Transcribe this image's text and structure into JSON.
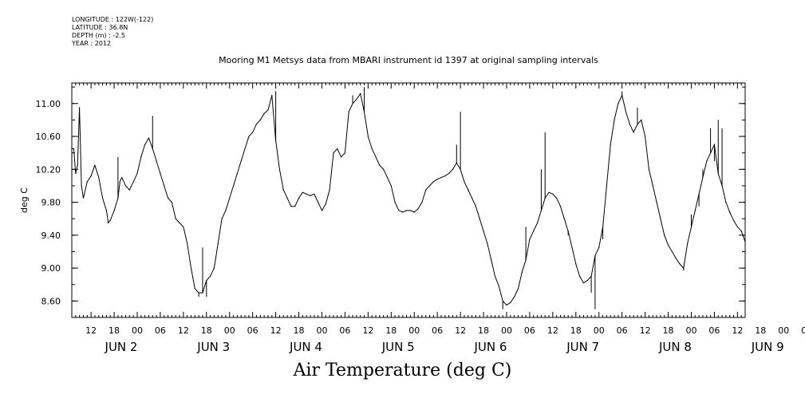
{
  "header": {
    "longitude": "LONGITUDE : 122W(-122)",
    "latitude": "LATITUDE : 36.8N",
    "depth": "DEPTH (m) : -2.5",
    "year": "YEAR : 2012"
  },
  "chart_data": {
    "type": "line",
    "title": "Mooring M1 Metsys data from MBARI instrument id 1397 at original sampling intervals",
    "ylabel": "deg C",
    "xlabel": "Air Temperature (deg C)",
    "ylim": [
      8.4,
      11.25
    ],
    "y_ticks": [
      "11.00",
      "10.60",
      "10.20",
      "9.80",
      "9.40",
      "9.00",
      "8.60"
    ],
    "x_hour_ticks": [
      "12",
      "18",
      "00",
      "06",
      "12",
      "18",
      "00",
      "06",
      "12",
      "18",
      "00",
      "06",
      "12",
      "18",
      "00",
      "06",
      "12",
      "18",
      "00",
      "06",
      "12",
      "18",
      "00",
      "06",
      "12",
      "18",
      "00",
      "06",
      "12",
      "18",
      "00",
      "06"
    ],
    "x_day_labels": [
      "JUN  2",
      "JUN  3",
      "JUN  4",
      "JUN  5",
      "JUN  6",
      "JUN  7",
      "JUN  8",
      "JUN  9"
    ],
    "series": [
      {
        "values": [
          [
            0,
            10.45
          ],
          [
            0.5,
            10.45
          ],
          [
            1,
            10.15
          ],
          [
            1.5,
            10.25
          ],
          [
            2,
            10.95
          ],
          [
            2.5,
            10.0
          ],
          [
            3,
            9.85
          ],
          [
            4,
            10.05
          ],
          [
            5,
            10.12
          ],
          [
            6,
            10.25
          ],
          [
            7,
            10.1
          ],
          [
            8,
            9.85
          ],
          [
            9,
            9.7
          ],
          [
            9.5,
            9.55
          ],
          [
            10,
            9.58
          ],
          [
            11,
            9.7
          ],
          [
            12,
            9.85
          ],
          [
            12.5,
            10.05
          ],
          [
            13,
            10.1
          ],
          [
            14,
            10.0
          ],
          [
            15,
            9.95
          ],
          [
            16,
            10.05
          ],
          [
            17,
            10.15
          ],
          [
            18,
            10.35
          ],
          [
            19,
            10.5
          ],
          [
            20,
            10.58
          ],
          [
            21,
            10.45
          ],
          [
            22,
            10.3
          ],
          [
            23,
            10.15
          ],
          [
            24,
            10.0
          ],
          [
            25,
            9.85
          ],
          [
            26,
            9.8
          ],
          [
            27,
            9.6
          ],
          [
            28,
            9.55
          ],
          [
            29,
            9.5
          ],
          [
            30,
            9.3
          ],
          [
            31,
            9.0
          ],
          [
            32,
            8.75
          ],
          [
            33,
            8.7
          ],
          [
            34,
            8.7
          ],
          [
            35,
            8.85
          ],
          [
            36,
            8.9
          ],
          [
            37,
            9.0
          ],
          [
            38,
            9.3
          ],
          [
            39,
            9.6
          ],
          [
            40,
            9.7
          ],
          [
            41,
            9.85
          ],
          [
            42,
            10.0
          ],
          [
            43,
            10.15
          ],
          [
            44,
            10.3
          ],
          [
            45,
            10.45
          ],
          [
            46,
            10.6
          ],
          [
            47,
            10.65
          ],
          [
            48,
            10.75
          ],
          [
            49,
            10.8
          ],
          [
            50,
            10.88
          ],
          [
            51,
            10.92
          ],
          [
            52,
            11.1
          ],
          [
            53,
            10.55
          ],
          [
            54,
            10.2
          ],
          [
            55,
            9.95
          ],
          [
            56,
            9.85
          ],
          [
            57,
            9.75
          ],
          [
            58,
            9.75
          ],
          [
            59,
            9.85
          ],
          [
            60,
            9.92
          ],
          [
            61,
            9.9
          ],
          [
            62,
            9.88
          ],
          [
            63,
            9.9
          ],
          [
            64,
            9.8
          ],
          [
            65,
            9.7
          ],
          [
            66,
            9.78
          ],
          [
            67,
            9.95
          ],
          [
            68,
            10.4
          ],
          [
            69,
            10.45
          ],
          [
            70,
            10.35
          ],
          [
            71,
            10.4
          ],
          [
            72,
            10.9
          ],
          [
            73,
            11.0
          ],
          [
            74,
            11.05
          ],
          [
            75,
            11.12
          ],
          [
            76,
            10.9
          ],
          [
            77,
            10.6
          ],
          [
            78,
            10.45
          ],
          [
            79,
            10.35
          ],
          [
            80,
            10.25
          ],
          [
            81,
            10.2
          ],
          [
            82,
            10.1
          ],
          [
            83,
            10.0
          ],
          [
            84,
            9.8
          ],
          [
            85,
            9.7
          ],
          [
            86,
            9.68
          ],
          [
            87,
            9.7
          ],
          [
            88,
            9.7
          ],
          [
            89,
            9.68
          ],
          [
            90,
            9.72
          ],
          [
            91,
            9.8
          ],
          [
            92,
            9.95
          ],
          [
            93,
            10.0
          ],
          [
            94,
            10.05
          ],
          [
            95,
            10.08
          ],
          [
            96,
            10.1
          ],
          [
            97,
            10.12
          ],
          [
            98,
            10.15
          ],
          [
            99,
            10.2
          ],
          [
            100,
            10.28
          ],
          [
            101,
            10.2
          ],
          [
            102,
            10.05
          ],
          [
            103,
            9.95
          ],
          [
            104,
            9.85
          ],
          [
            105,
            9.75
          ],
          [
            106,
            9.6
          ],
          [
            107,
            9.45
          ],
          [
            108,
            9.3
          ],
          [
            109,
            9.1
          ],
          [
            110,
            8.9
          ],
          [
            111,
            8.78
          ],
          [
            112,
            8.6
          ],
          [
            113,
            8.55
          ],
          [
            114,
            8.58
          ],
          [
            115,
            8.65
          ],
          [
            116,
            8.75
          ],
          [
            117,
            8.95
          ],
          [
            118,
            9.1
          ],
          [
            119,
            9.35
          ],
          [
            120,
            9.45
          ],
          [
            121,
            9.55
          ],
          [
            122,
            9.7
          ],
          [
            123,
            9.85
          ],
          [
            124,
            9.92
          ],
          [
            125,
            9.9
          ],
          [
            126,
            9.85
          ],
          [
            127,
            9.75
          ],
          [
            128,
            9.6
          ],
          [
            129,
            9.45
          ],
          [
            130,
            9.25
          ],
          [
            131,
            9.05
          ],
          [
            132,
            8.9
          ],
          [
            133,
            8.82
          ],
          [
            134,
            8.85
          ],
          [
            135,
            8.9
          ],
          [
            136,
            9.15
          ],
          [
            137,
            9.25
          ],
          [
            138,
            9.5
          ],
          [
            139,
            10.0
          ],
          [
            140,
            10.5
          ],
          [
            141,
            10.8
          ],
          [
            142,
            11.0
          ],
          [
            143,
            11.1
          ],
          [
            144,
            10.9
          ],
          [
            145,
            10.75
          ],
          [
            146,
            10.65
          ],
          [
            147,
            10.75
          ],
          [
            148,
            10.8
          ],
          [
            149,
            10.6
          ],
          [
            150,
            10.2
          ],
          [
            151,
            10.0
          ],
          [
            152,
            9.8
          ],
          [
            153,
            9.6
          ],
          [
            154,
            9.4
          ],
          [
            155,
            9.28
          ],
          [
            156,
            9.2
          ],
          [
            157,
            9.12
          ],
          [
            158,
            9.05
          ],
          [
            159,
            9.0
          ],
          [
            160,
            9.3
          ],
          [
            161,
            9.5
          ],
          [
            162,
            9.7
          ],
          [
            163,
            9.9
          ],
          [
            164,
            10.1
          ],
          [
            165,
            10.3
          ],
          [
            166,
            10.4
          ],
          [
            167,
            10.5
          ],
          [
            168,
            10.15
          ],
          [
            169,
            10.0
          ],
          [
            170,
            9.8
          ],
          [
            171,
            9.68
          ],
          [
            172,
            9.58
          ],
          [
            173,
            9.5
          ],
          [
            174,
            9.45
          ],
          [
            175,
            9.32
          ]
        ]
      }
    ],
    "spikes": [
      [
        2,
        10.95
      ],
      [
        12,
        10.35
      ],
      [
        21,
        10.85
      ],
      [
        33,
        8.65
      ],
      [
        34,
        9.25
      ],
      [
        35,
        8.65
      ],
      [
        53,
        11.15
      ],
      [
        73,
        11.1
      ],
      [
        76,
        11.2
      ],
      [
        100,
        10.5
      ],
      [
        101,
        10.9
      ],
      [
        112,
        8.5
      ],
      [
        118,
        9.5
      ],
      [
        122,
        10.2
      ],
      [
        123,
        10.65
      ],
      [
        129,
        9.4
      ],
      [
        135,
        8.7
      ],
      [
        136,
        8.5
      ],
      [
        138,
        9.35
      ],
      [
        143,
        11.15
      ],
      [
        147,
        10.95
      ],
      [
        159,
        8.97
      ],
      [
        161,
        9.65
      ],
      [
        163,
        9.75
      ],
      [
        164,
        10.2
      ],
      [
        166,
        10.7
      ],
      [
        167,
        10.3
      ],
      [
        168,
        10.8
      ],
      [
        169,
        10.7
      ]
    ],
    "x_span_hours": 175,
    "first_day_offset_hours": 5,
    "grid": false
  }
}
